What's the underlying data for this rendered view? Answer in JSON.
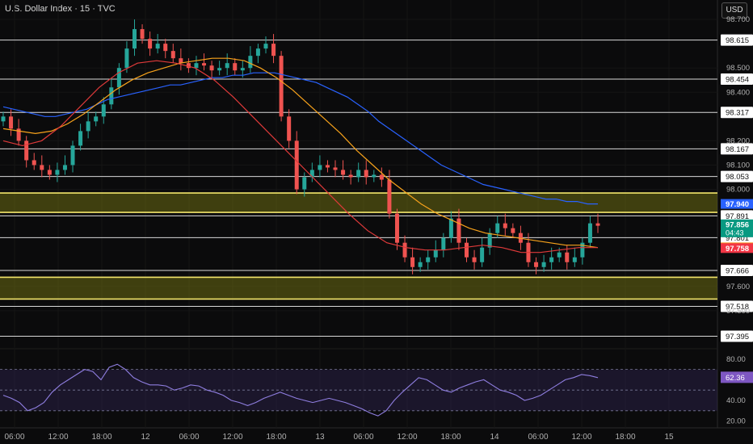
{
  "header": {
    "title": "U.S. Dollar Index · 15 · TVC",
    "currency": "USD"
  },
  "chart_data": {
    "type": "candlestick",
    "title": "U.S. Dollar Index · 15 · TVC",
    "ylim": [
      97.35,
      98.78
    ],
    "y_ticks": [
      "98.700",
      "98.500",
      "98.400",
      "98.200",
      "98.100",
      "98.000",
      "97.600",
      "97.500"
    ],
    "x_ticks": [
      "06:00",
      "12:00",
      "18:00",
      "12",
      "06:00",
      "12:00",
      "18:00",
      "13",
      "06:00",
      "12:00",
      "18:00",
      "14",
      "06:00",
      "12:00",
      "18:00",
      "15"
    ],
    "grid": true,
    "horizontal_levels": [
      {
        "value": 98.615,
        "label": "98.615"
      },
      {
        "value": 98.454,
        "label": "98.454"
      },
      {
        "value": 98.317,
        "label": "98.317"
      },
      {
        "value": 98.167,
        "label": "98.167"
      },
      {
        "value": 98.053,
        "label": "98.053"
      },
      {
        "value": 97.891,
        "label": "97.891"
      },
      {
        "value": 97.801,
        "label": "97.801"
      },
      {
        "value": 97.666,
        "label": "97.666"
      },
      {
        "value": 97.518,
        "label": "97.518"
      },
      {
        "value": 97.395,
        "label": "97.395"
      }
    ],
    "zones": [
      {
        "from": 97.905,
        "to": 97.985,
        "color": "#6b6b12"
      },
      {
        "from": 97.548,
        "to": 97.638,
        "color": "#6b6b12"
      }
    ],
    "price_tags": [
      {
        "value": 97.94,
        "label": "97.940",
        "color": "#2962ff"
      },
      {
        "value": 97.856,
        "label": "97.856",
        "sub": "04:43",
        "color": "#089981"
      },
      {
        "value": 97.761,
        "label": "97.761",
        "color": "#f7931a"
      },
      {
        "value": 97.758,
        "label": "97.758",
        "color": "#f23645"
      }
    ],
    "series": [
      {
        "name": "",
        "kind": "candles",
        "close": [
          98.3,
          98.25,
          98.2,
          98.12,
          98.1,
          98.08,
          98.06,
          98.08,
          98.1,
          98.18,
          98.24,
          98.28,
          98.3,
          98.35,
          98.42,
          98.5,
          98.58,
          98.66,
          98.62,
          98.58,
          98.6,
          98.57,
          98.54,
          98.52,
          98.5,
          98.52,
          98.51,
          98.49,
          98.5,
          98.52,
          98.49,
          98.5,
          98.55,
          98.58,
          98.6,
          98.55,
          98.3,
          98.2,
          98.0,
          98.05,
          98.08,
          98.1,
          98.09,
          98.08,
          98.06,
          98.05,
          98.08,
          98.05,
          98.06,
          98.04,
          97.9,
          97.78,
          97.72,
          97.68,
          97.7,
          97.72,
          97.75,
          97.8,
          97.88,
          97.78,
          97.72,
          97.7,
          97.76,
          97.82,
          97.86,
          97.84,
          97.82,
          97.78,
          97.7,
          97.68,
          97.7,
          97.72,
          97.74,
          97.7,
          97.72,
          97.78,
          97.86,
          97.85
        ]
      },
      {
        "name": "",
        "kind": "ma",
        "color": "#2962ff",
        "values": [
          98.34,
          98.33,
          98.32,
          98.31,
          98.3,
          98.3,
          98.31,
          98.32,
          98.33,
          98.35,
          98.37,
          98.38,
          98.39,
          98.4,
          98.41,
          98.42,
          98.43,
          98.43,
          98.44,
          98.45,
          98.46,
          98.46,
          98.47,
          98.47,
          98.48,
          98.48,
          98.48,
          98.47,
          98.46,
          98.45,
          98.44,
          98.42,
          98.4,
          98.38,
          98.35,
          98.32,
          98.28,
          98.25,
          98.22,
          98.19,
          98.16,
          98.13,
          98.1,
          98.08,
          98.06,
          98.04,
          98.02,
          98.01,
          98.0,
          97.99,
          97.98,
          97.97,
          97.96,
          97.96,
          97.95,
          97.95,
          97.94,
          97.94
        ]
      },
      {
        "name": "",
        "kind": "ma",
        "color": "#f7a21b",
        "values": [
          98.25,
          98.24,
          98.23,
          98.24,
          98.27,
          98.31,
          98.36,
          98.41,
          98.45,
          98.48,
          98.5,
          98.52,
          98.53,
          98.54,
          98.54,
          98.53,
          98.5,
          98.46,
          98.41,
          98.35,
          98.29,
          98.23,
          98.16,
          98.1,
          98.04,
          97.99,
          97.94,
          97.9,
          97.87,
          97.84,
          97.82,
          97.81,
          97.8,
          97.79,
          97.78,
          97.77,
          97.77,
          97.76
        ]
      },
      {
        "name": "",
        "kind": "ma",
        "color": "#e03a3a",
        "values": [
          98.2,
          98.18,
          98.2,
          98.26,
          98.34,
          98.42,
          98.48,
          98.52,
          98.53,
          98.52,
          98.5,
          98.45,
          98.38,
          98.3,
          98.22,
          98.14,
          98.06,
          97.98,
          97.9,
          97.83,
          97.78,
          97.76,
          97.75,
          97.75,
          97.76,
          97.77,
          97.76,
          97.74,
          97.74,
          97.75,
          97.76,
          97.76
        ]
      }
    ],
    "rsi": {
      "ylabels": [
        "80.00",
        "40.00",
        "20.00"
      ],
      "bands": [
        70,
        30
      ],
      "value": 62.36,
      "label": "62.36",
      "values": [
        45,
        42,
        38,
        30,
        33,
        38,
        48,
        55,
        60,
        65,
        70,
        68,
        60,
        72,
        75,
        70,
        62,
        58,
        55,
        55,
        54,
        50,
        52,
        55,
        54,
        50,
        48,
        45,
        40,
        38,
        35,
        38,
        42,
        45,
        48,
        45,
        42,
        40,
        38,
        40,
        42,
        40,
        38,
        35,
        32,
        28,
        25,
        30,
        40,
        48,
        55,
        62,
        60,
        55,
        50,
        48,
        52,
        55,
        58,
        60,
        55,
        50,
        48,
        45,
        40,
        42,
        45,
        50,
        55,
        60,
        62,
        65,
        64,
        62
      ]
    }
  }
}
